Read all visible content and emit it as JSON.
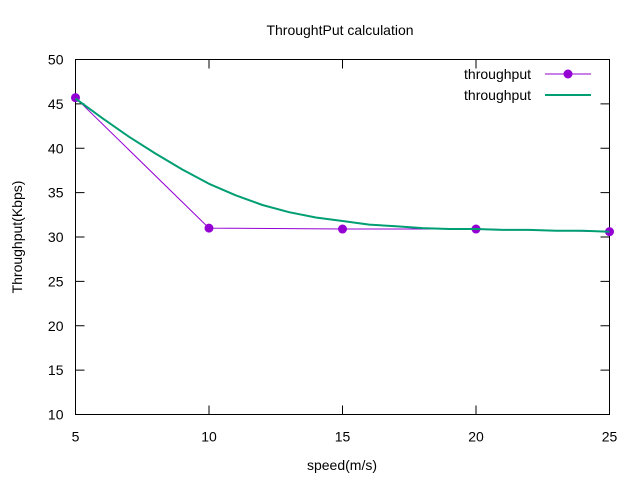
{
  "chart_data": {
    "type": "line",
    "title": "ThroughtPut calculation",
    "xlabel": "speed(m/s)",
    "ylabel": "Throughput(Kbps)",
    "xlim": [
      5,
      25
    ],
    "ylim": [
      10,
      50
    ],
    "x_ticks": [
      5,
      10,
      15,
      20,
      25
    ],
    "y_ticks": [
      10,
      15,
      20,
      25,
      30,
      35,
      40,
      45,
      50
    ],
    "grid": false,
    "legend_position": "top-right",
    "series": [
      {
        "name": "throughput",
        "style": "linespoints",
        "color": "#9400d3",
        "x": [
          5,
          10,
          15,
          20,
          25
        ],
        "y": [
          45.7,
          31.0,
          30.9,
          30.9,
          30.6
        ]
      },
      {
        "name": "throughput",
        "style": "smooth-line",
        "color": "#009e73",
        "x": [
          5,
          6,
          7,
          8,
          9,
          10,
          11,
          12,
          13,
          14,
          15,
          16,
          17,
          18,
          19,
          20,
          21,
          22,
          23,
          24,
          25
        ],
        "y": [
          45.6,
          43.4,
          41.3,
          39.4,
          37.6,
          36.0,
          34.7,
          33.6,
          32.8,
          32.2,
          31.8,
          31.4,
          31.2,
          31.0,
          30.9,
          30.9,
          30.8,
          30.8,
          30.7,
          30.7,
          30.6
        ]
      }
    ]
  }
}
